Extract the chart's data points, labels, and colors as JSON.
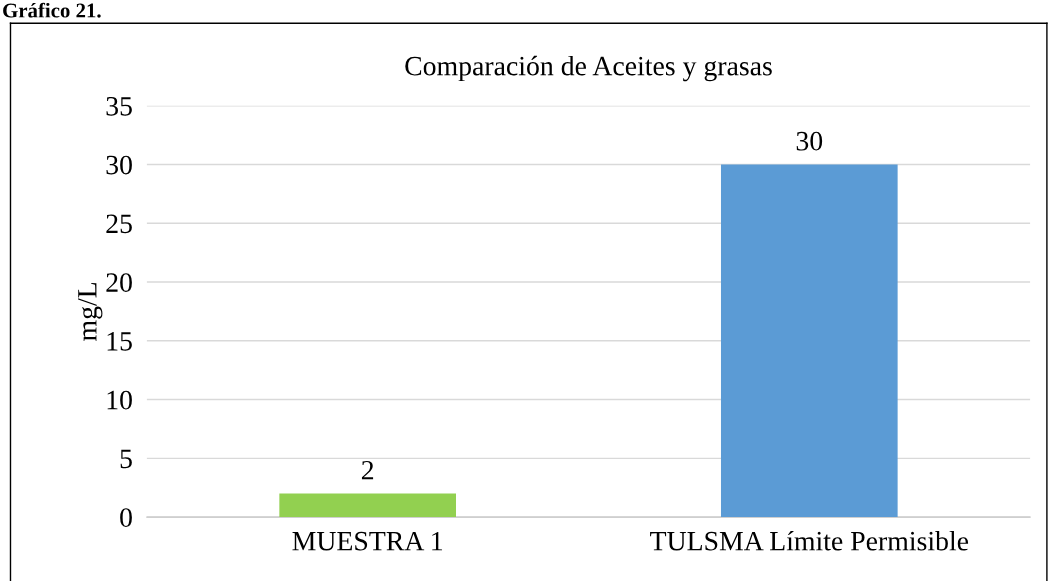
{
  "chart_data": {
    "type": "bar",
    "title": "Comparación de Aceites y grasas",
    "ylabel": "mg/L",
    "annotations": [
      "Gráfico 21."
    ],
    "categories": [
      "MUESTRA 1",
      "TULSMA Límite Permisible"
    ],
    "values": [
      2,
      30
    ],
    "colors": [
      "#92d050",
      "#5b9bd5"
    ],
    "ylim": [
      0,
      35
    ],
    "yticks": [
      0,
      5,
      10,
      15,
      20,
      25,
      30,
      35
    ],
    "grid": "y",
    "data_labels": true,
    "legend": false
  }
}
